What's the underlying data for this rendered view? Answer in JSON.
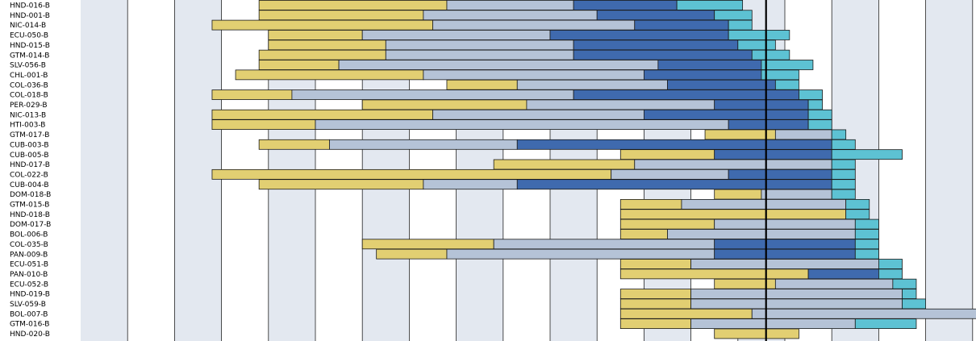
{
  "colors": {
    "band_light": "#e3e8f0",
    "band_white": "#ffffff",
    "grid": "#222222",
    "marker": "#000000",
    "phase1": "#e2cf72",
    "phase2": "#b5c3d7",
    "phase3": "#3f6aae",
    "phase4": "#5dc2d3"
  },
  "chart_data": {
    "type": "gantt",
    "x_domain": [
      0,
      20.3
    ],
    "today_marker": 14.6,
    "grid_x": [
      1,
      2,
      3,
      4,
      5,
      6,
      7,
      8,
      9,
      10,
      11,
      12,
      13,
      14,
      15,
      16,
      17,
      18,
      19,
      20
    ],
    "rows": [
      {
        "label": "HND-016-B",
        "segments": [
          [
            3.8,
            7.8,
            1
          ],
          [
            7.8,
            10.5,
            2
          ],
          [
            10.5,
            12.7,
            3
          ],
          [
            12.7,
            14.1,
            4
          ]
        ]
      },
      {
        "label": "HND-001-B",
        "segments": [
          [
            3.8,
            7.3,
            1
          ],
          [
            7.3,
            11.0,
            2
          ],
          [
            11.0,
            13.5,
            3
          ],
          [
            13.5,
            14.3,
            4
          ]
        ]
      },
      {
        "label": "NIC-014-B",
        "segments": [
          [
            2.8,
            7.5,
            1
          ],
          [
            7.5,
            11.8,
            2
          ],
          [
            11.8,
            13.8,
            3
          ],
          [
            13.8,
            14.3,
            4
          ]
        ]
      },
      {
        "label": "ECU-050-B",
        "segments": [
          [
            4.0,
            6.0,
            1
          ],
          [
            6.0,
            10.0,
            2
          ],
          [
            10.0,
            13.8,
            3
          ],
          [
            13.8,
            15.1,
            4
          ]
        ]
      },
      {
        "label": "HND-015-B",
        "segments": [
          [
            4.0,
            6.5,
            1
          ],
          [
            6.5,
            10.5,
            2
          ],
          [
            10.5,
            14.0,
            3
          ],
          [
            14.0,
            14.8,
            4
          ]
        ]
      },
      {
        "label": "GTM-014-B",
        "segments": [
          [
            3.8,
            6.5,
            1
          ],
          [
            6.5,
            10.5,
            2
          ],
          [
            10.5,
            14.3,
            3
          ],
          [
            14.3,
            15.1,
            4
          ]
        ]
      },
      {
        "label": "SLV-056-B",
        "segments": [
          [
            3.8,
            5.5,
            1
          ],
          [
            5.5,
            12.3,
            2
          ],
          [
            12.3,
            14.5,
            3
          ],
          [
            14.5,
            15.6,
            4
          ]
        ]
      },
      {
        "label": "CHL-001-B",
        "segments": [
          [
            3.3,
            7.3,
            1
          ],
          [
            7.3,
            12.0,
            2
          ],
          [
            12.0,
            14.5,
            3
          ],
          [
            14.5,
            15.3,
            4
          ]
        ]
      },
      {
        "label": "COL-036-B",
        "segments": [
          [
            7.8,
            9.3,
            1
          ],
          [
            9.3,
            12.5,
            2
          ],
          [
            12.5,
            14.8,
            3
          ],
          [
            14.8,
            15.3,
            4
          ]
        ]
      },
      {
        "label": "COL-018-B",
        "segments": [
          [
            2.8,
            4.5,
            1
          ],
          [
            4.5,
            10.5,
            2
          ],
          [
            10.5,
            15.3,
            3
          ],
          [
            15.3,
            15.8,
            4
          ]
        ]
      },
      {
        "label": "PER-029-B",
        "segments": [
          [
            6.0,
            9.5,
            1
          ],
          [
            9.5,
            13.5,
            2
          ],
          [
            13.5,
            15.5,
            3
          ],
          [
            15.5,
            15.8,
            4
          ]
        ]
      },
      {
        "label": "NIC-013-B",
        "segments": [
          [
            2.8,
            7.5,
            1
          ],
          [
            7.5,
            12.0,
            2
          ],
          [
            12.0,
            15.5,
            3
          ],
          [
            15.5,
            16.0,
            4
          ]
        ]
      },
      {
        "label": "HTI-003-B",
        "segments": [
          [
            2.8,
            5.0,
            1
          ],
          [
            5.0,
            13.8,
            2
          ],
          [
            13.8,
            15.5,
            3
          ],
          [
            15.5,
            16.0,
            4
          ]
        ]
      },
      {
        "label": "GTM-017-B",
        "segments": [
          [
            13.3,
            14.8,
            1
          ],
          [
            14.8,
            16.0,
            2
          ],
          [
            16.0,
            16.3,
            4
          ]
        ]
      },
      {
        "label": "CUB-003-B",
        "segments": [
          [
            3.8,
            5.3,
            1
          ],
          [
            5.3,
            9.3,
            2
          ],
          [
            9.3,
            16.0,
            3
          ],
          [
            16.0,
            16.5,
            4
          ]
        ]
      },
      {
        "label": "CUB-005-B",
        "segments": [
          [
            11.5,
            13.5,
            1
          ],
          [
            13.5,
            16.0,
            3
          ],
          [
            16.0,
            17.5,
            4
          ]
        ]
      },
      {
        "label": "HND-017-B",
        "segments": [
          [
            8.8,
            11.8,
            1
          ],
          [
            11.8,
            16.0,
            2
          ],
          [
            16.0,
            16.5,
            4
          ]
        ]
      },
      {
        "label": "COL-022-B",
        "segments": [
          [
            2.8,
            11.3,
            1
          ],
          [
            11.3,
            13.8,
            2
          ],
          [
            13.8,
            16.0,
            3
          ],
          [
            16.0,
            16.5,
            4
          ]
        ]
      },
      {
        "label": "CUB-004-B",
        "segments": [
          [
            3.8,
            7.3,
            1
          ],
          [
            7.3,
            9.3,
            2
          ],
          [
            9.3,
            16.0,
            3
          ],
          [
            16.0,
            16.5,
            4
          ]
        ]
      },
      {
        "label": "DOM-018-B",
        "segments": [
          [
            13.5,
            14.5,
            1
          ],
          [
            14.5,
            16.0,
            2
          ],
          [
            16.0,
            16.5,
            4
          ]
        ]
      },
      {
        "label": "GTM-015-B",
        "segments": [
          [
            11.5,
            12.8,
            1
          ],
          [
            12.8,
            16.3,
            2
          ],
          [
            16.3,
            16.8,
            4
          ]
        ]
      },
      {
        "label": "HND-018-B",
        "segments": [
          [
            11.5,
            16.3,
            1
          ],
          [
            16.3,
            16.8,
            4
          ]
        ]
      },
      {
        "label": "DOM-017-B",
        "segments": [
          [
            11.5,
            13.5,
            1
          ],
          [
            13.5,
            16.5,
            2
          ],
          [
            16.5,
            17.0,
            4
          ]
        ]
      },
      {
        "label": "BOL-006-B",
        "segments": [
          [
            11.5,
            12.5,
            1
          ],
          [
            12.5,
            16.5,
            2
          ],
          [
            16.5,
            17.0,
            4
          ]
        ]
      },
      {
        "label": "COL-035-B",
        "segments": [
          [
            6.0,
            8.8,
            1
          ],
          [
            8.8,
            13.5,
            2
          ],
          [
            13.5,
            16.5,
            3
          ],
          [
            16.5,
            17.0,
            4
          ]
        ]
      },
      {
        "label": "PAN-009-B",
        "segments": [
          [
            6.3,
            7.8,
            1
          ],
          [
            7.8,
            13.5,
            2
          ],
          [
            13.5,
            16.5,
            3
          ],
          [
            16.5,
            17.0,
            4
          ]
        ]
      },
      {
        "label": "ECU-051-B",
        "segments": [
          [
            11.5,
            13.0,
            1
          ],
          [
            13.0,
            17.0,
            2
          ],
          [
            17.0,
            17.5,
            4
          ]
        ]
      },
      {
        "label": "PAN-010-B",
        "segments": [
          [
            11.5,
            15.5,
            1
          ],
          [
            15.5,
            17.0,
            3
          ],
          [
            17.0,
            17.5,
            4
          ]
        ]
      },
      {
        "label": "ECU-052-B",
        "segments": [
          [
            13.5,
            14.8,
            1
          ],
          [
            14.8,
            17.3,
            2
          ],
          [
            17.3,
            17.8,
            4
          ]
        ]
      },
      {
        "label": "HND-019-B",
        "segments": [
          [
            11.5,
            13.0,
            1
          ],
          [
            13.0,
            17.5,
            2
          ],
          [
            17.5,
            17.8,
            4
          ]
        ]
      },
      {
        "label": "SLV-059-B",
        "segments": [
          [
            11.5,
            13.0,
            1
          ],
          [
            13.0,
            17.5,
            2
          ],
          [
            17.5,
            18.0,
            4
          ]
        ]
      },
      {
        "label": "BOL-007-B",
        "segments": [
          [
            11.5,
            14.3,
            1
          ],
          [
            14.3,
            19.5,
            2
          ],
          [
            19.5,
            20.0,
            4
          ]
        ]
      },
      {
        "label": "GTM-016-B",
        "segments": [
          [
            11.5,
            13.0,
            1
          ],
          [
            13.0,
            16.5,
            2
          ],
          [
            16.5,
            17.8,
            4
          ]
        ]
      },
      {
        "label": "HND-020-B",
        "segments": [
          [
            13.5,
            15.3,
            1
          ]
        ]
      }
    ]
  }
}
